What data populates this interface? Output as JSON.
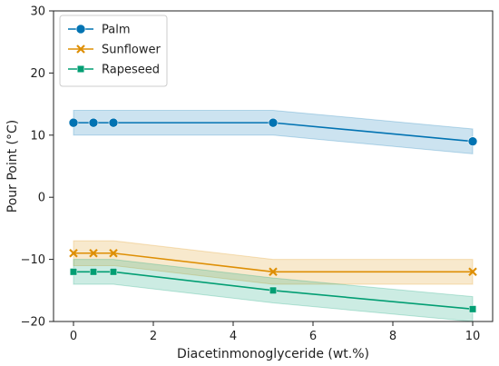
{
  "chart_data": {
    "type": "line",
    "xlabel": "Diacetinmonoglyceride (wt.%)",
    "ylabel": "Pour Point (°C)",
    "xlim": [
      -0.5,
      10.5
    ],
    "ylim": [
      -20,
      30
    ],
    "xticks": [
      0,
      2,
      4,
      6,
      8,
      10
    ],
    "yticks": [
      -20,
      -10,
      0,
      10,
      20,
      30
    ],
    "grid": false,
    "legend_position": "top-left",
    "series": [
      {
        "name": "Palm",
        "color": "#0173b2",
        "marker": "circle",
        "x": [
          0,
          0.5,
          1,
          5,
          10
        ],
        "y": [
          12,
          12,
          12,
          12,
          9
        ],
        "band_low": [
          10,
          10,
          10,
          10,
          7
        ],
        "band_high": [
          14,
          14,
          14,
          14,
          11
        ]
      },
      {
        "name": "Sunflower",
        "color": "#de8f05",
        "marker": "x",
        "x": [
          0,
          0.5,
          1,
          5,
          10
        ],
        "y": [
          -9,
          -9,
          -9,
          -12,
          -12
        ],
        "band_low": [
          -11,
          -11,
          -11,
          -14,
          -14
        ],
        "band_high": [
          -7,
          -7,
          -7,
          -10,
          -10
        ]
      },
      {
        "name": "Rapeseed",
        "color": "#029e73",
        "marker": "square",
        "x": [
          0,
          0.5,
          1,
          5,
          10
        ],
        "y": [
          -12,
          -12,
          -12,
          -15,
          -18
        ],
        "band_low": [
          -14,
          -14,
          -14,
          -17,
          -20
        ],
        "band_high": [
          -10,
          -10,
          -10,
          -13,
          -16
        ]
      }
    ]
  }
}
